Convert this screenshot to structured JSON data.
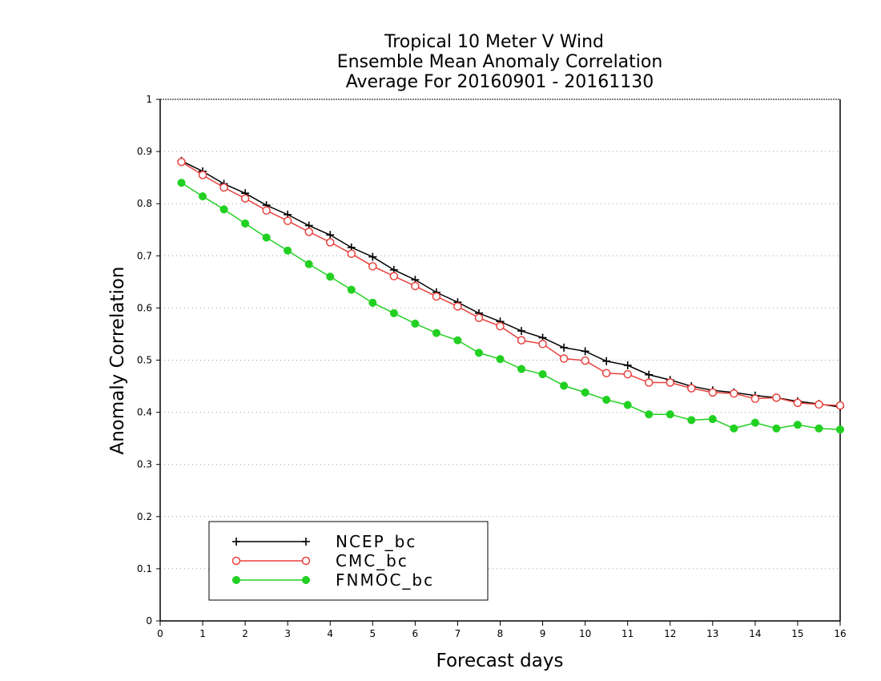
{
  "chart_data": {
    "type": "line",
    "title": [
      "Tropical 10 Meter V Wind",
      "Ensemble Mean Anomaly Correlation",
      "Average For 20160901 - 20161130"
    ],
    "xlabel": "Forecast days",
    "ylabel": "Anomaly Correlation",
    "xlim": [
      0,
      16
    ],
    "ylim": [
      0,
      1
    ],
    "xticks": [
      0,
      1,
      2,
      3,
      4,
      5,
      6,
      7,
      8,
      9,
      10,
      11,
      12,
      13,
      14,
      15,
      16
    ],
    "yticks": [
      0,
      0.1,
      0.2,
      0.3,
      0.4,
      0.5,
      0.6,
      0.7,
      0.8,
      0.9,
      1
    ],
    "ytick_labels": [
      "0",
      "0.1",
      "0.2",
      "0.3",
      "0.4",
      "0.5",
      "0.6",
      "0.7",
      "0.8",
      "0.9",
      "1"
    ],
    "grid": true,
    "legend_position": "bottom-left",
    "x": [
      0.5,
      1,
      1.5,
      2,
      2.5,
      3,
      3.5,
      4,
      4.5,
      5,
      5.5,
      6,
      6.5,
      7,
      7.5,
      8,
      8.5,
      9,
      9.5,
      10,
      10.5,
      11,
      11.5,
      12,
      12.5,
      13,
      13.5,
      14,
      14.5,
      15,
      15.5,
      16
    ],
    "series": [
      {
        "name": "NCEP_bc",
        "color": "#000000",
        "marker": "plus",
        "values": [
          0.882,
          0.862,
          0.838,
          0.82,
          0.797,
          0.779,
          0.758,
          0.74,
          0.716,
          0.698,
          0.673,
          0.654,
          0.63,
          0.611,
          0.59,
          0.574,
          0.556,
          0.543,
          0.524,
          0.517,
          0.498,
          0.49,
          0.472,
          0.462,
          0.45,
          0.442,
          0.438,
          0.432,
          0.428,
          0.421,
          0.416,
          0.41
        ]
      },
      {
        "name": "CMC_bc",
        "color": "#e8413e",
        "marker": "open-circle",
        "values": [
          0.88,
          0.855,
          0.831,
          0.81,
          0.787,
          0.767,
          0.746,
          0.726,
          0.704,
          0.68,
          0.661,
          0.642,
          0.622,
          0.603,
          0.581,
          0.565,
          0.538,
          0.531,
          0.503,
          0.499,
          0.475,
          0.473,
          0.457,
          0.457,
          0.446,
          0.438,
          0.436,
          0.426,
          0.428,
          0.418,
          0.415,
          0.413
        ]
      },
      {
        "name": "FNMOC_bc",
        "color": "#22d022",
        "marker": "filled-circle",
        "values": [
          0.84,
          0.814,
          0.789,
          0.762,
          0.735,
          0.71,
          0.684,
          0.66,
          0.635,
          0.61,
          0.59,
          0.57,
          0.552,
          0.538,
          0.514,
          0.502,
          0.483,
          0.473,
          0.451,
          0.438,
          0.424,
          0.414,
          0.396,
          0.396,
          0.385,
          0.387,
          0.369,
          0.38,
          0.369,
          0.376,
          0.369,
          0.367
        ]
      }
    ]
  }
}
